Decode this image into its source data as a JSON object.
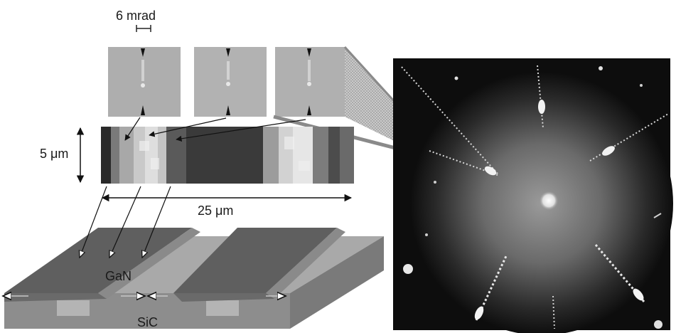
{
  "labels": {
    "angular_scale": "6 mrad",
    "height_scale": "5 μm",
    "width_scale": "25 μm",
    "layer_top": "GaN",
    "layer_bottom": "SiC"
  },
  "colors": {
    "background": "#ffffff",
    "pattern_panel": "#aeaeae",
    "map_dark": "#3c3c3c",
    "map_light": "#d6d6d6",
    "gan_dark": "#5f5f5f",
    "gan_light": "#8a8a8a",
    "sic_top": "#a9a9a9",
    "sic_front": "#8d8d8d",
    "diffraction_bg": "#0d0d0d",
    "spot": "#f2f2f2"
  },
  "icons": [
    "left-right-arrow-icon",
    "up-down-arrow-icon",
    "pointer-arrow-icon"
  ]
}
